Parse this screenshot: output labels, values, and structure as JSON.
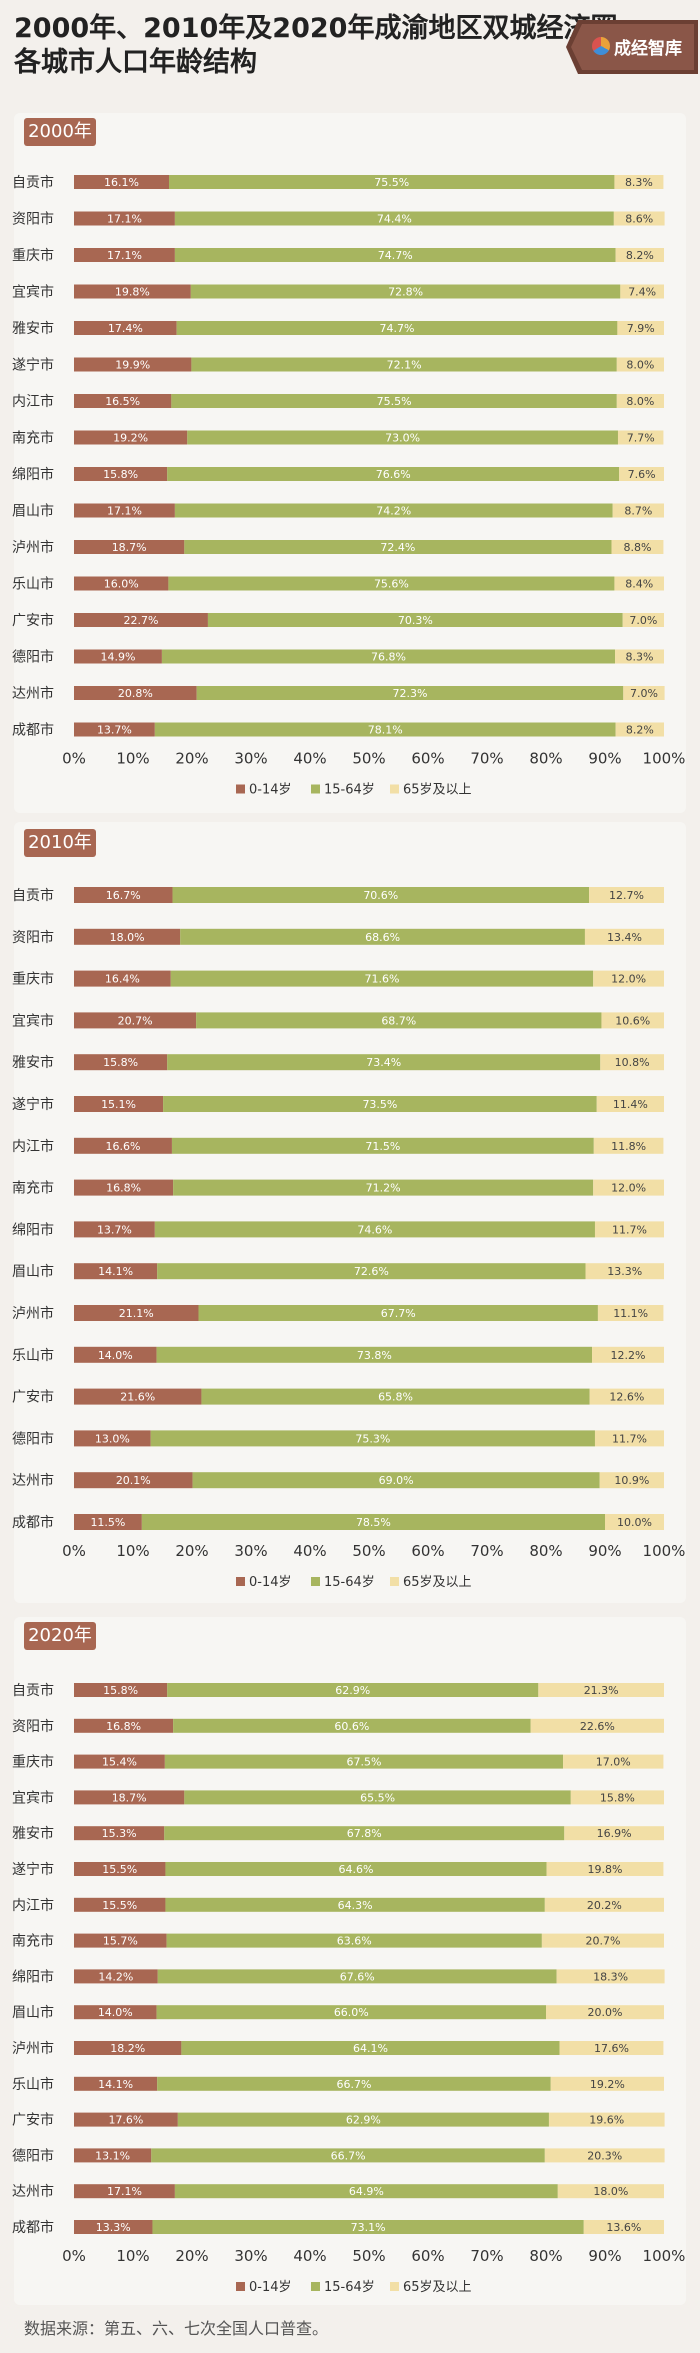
{
  "title_line1": "2000年、2010年及2020年成渝地区双城经济圈",
  "title_line2": "各城市人口年龄结构",
  "logo_text": "成经智库",
  "source": "数据来源：第五、六、七次全国人口普查。",
  "colors": {
    "age_0_14": "#a86752",
    "age_15_64": "#a7b55f",
    "age_65_plus": "#f2dfa6"
  },
  "chart_data": [
    {
      "type": "bar",
      "title": "2000年",
      "orientation": "horizontal-stacked-100",
      "categories": [
        "自贡市",
        "资阳市",
        "重庆市",
        "宜宾市",
        "雅安市",
        "遂宁市",
        "内江市",
        "南充市",
        "绵阳市",
        "眉山市",
        "泸州市",
        "乐山市",
        "广安市",
        "德阳市",
        "达州市",
        "成都市"
      ],
      "series": [
        {
          "name": "0-14岁",
          "values": [
            16.1,
            17.1,
            17.1,
            19.8,
            17.4,
            19.9,
            16.5,
            19.2,
            15.8,
            17.1,
            18.7,
            16.0,
            22.7,
            14.9,
            20.8,
            13.7
          ]
        },
        {
          "name": "15-64岁",
          "values": [
            75.5,
            74.4,
            74.7,
            72.8,
            74.7,
            72.1,
            75.5,
            73.0,
            76.6,
            74.2,
            72.4,
            75.6,
            70.3,
            76.8,
            72.3,
            78.1
          ]
        },
        {
          "name": "65岁及以上",
          "values": [
            8.3,
            8.6,
            8.2,
            7.4,
            7.9,
            8.0,
            8.0,
            7.7,
            7.6,
            8.7,
            8.8,
            8.4,
            7.0,
            8.3,
            7.0,
            8.2
          ]
        }
      ],
      "xticks": [
        "0%",
        "10%",
        "20%",
        "30%",
        "40%",
        "50%",
        "60%",
        "70%",
        "80%",
        "90%",
        "100%"
      ],
      "xlim": [
        0,
        100
      ],
      "legend_placement": "bottom"
    },
    {
      "type": "bar",
      "title": "2010年",
      "orientation": "horizontal-stacked-100",
      "categories": [
        "自贡市",
        "资阳市",
        "重庆市",
        "宜宾市",
        "雅安市",
        "遂宁市",
        "内江市",
        "南充市",
        "绵阳市",
        "眉山市",
        "泸州市",
        "乐山市",
        "广安市",
        "德阳市",
        "达州市",
        "成都市"
      ],
      "series": [
        {
          "name": "0-14岁",
          "values": [
            16.7,
            18.0,
            16.4,
            20.7,
            15.8,
            15.1,
            16.6,
            16.8,
            13.7,
            14.1,
            21.1,
            14.0,
            21.6,
            13.0,
            20.1,
            11.5
          ]
        },
        {
          "name": "15-64岁",
          "values": [
            70.6,
            68.6,
            71.6,
            68.7,
            73.4,
            73.5,
            71.5,
            71.2,
            74.6,
            72.6,
            67.7,
            73.8,
            65.8,
            75.3,
            69.0,
            78.5
          ]
        },
        {
          "name": "65岁及以上",
          "values": [
            12.7,
            13.4,
            12.0,
            10.6,
            10.8,
            11.4,
            11.8,
            12.0,
            11.7,
            13.3,
            11.1,
            12.2,
            12.6,
            11.7,
            10.9,
            10.0
          ]
        }
      ],
      "xticks": [
        "0%",
        "10%",
        "20%",
        "30%",
        "40%",
        "50%",
        "60%",
        "70%",
        "80%",
        "90%",
        "100%"
      ],
      "xlim": [
        0,
        100
      ],
      "legend_placement": "bottom"
    },
    {
      "type": "bar",
      "title": "2020年",
      "orientation": "horizontal-stacked-100",
      "categories": [
        "自贡市",
        "资阳市",
        "重庆市",
        "宜宾市",
        "雅安市",
        "遂宁市",
        "内江市",
        "南充市",
        "绵阳市",
        "眉山市",
        "泸州市",
        "乐山市",
        "广安市",
        "德阳市",
        "达州市",
        "成都市"
      ],
      "series": [
        {
          "name": "0-14岁",
          "values": [
            15.8,
            16.8,
            15.4,
            18.7,
            15.3,
            15.5,
            15.5,
            15.7,
            14.2,
            14.0,
            18.2,
            14.1,
            17.6,
            13.1,
            17.1,
            13.3
          ]
        },
        {
          "name": "15-64岁",
          "values": [
            62.9,
            60.6,
            67.5,
            65.5,
            67.8,
            64.6,
            64.3,
            63.6,
            67.6,
            66.0,
            64.1,
            66.7,
            62.9,
            66.7,
            64.9,
            73.1
          ]
        },
        {
          "name": "65岁及以上",
          "values": [
            21.3,
            22.6,
            17.0,
            15.8,
            16.9,
            19.8,
            20.2,
            20.7,
            18.3,
            20.0,
            17.6,
            19.2,
            19.6,
            20.3,
            18.0,
            13.6
          ]
        }
      ],
      "xticks": [
        "0%",
        "10%",
        "20%",
        "30%",
        "40%",
        "50%",
        "60%",
        "70%",
        "80%",
        "90%",
        "100%"
      ],
      "xlim": [
        0,
        100
      ],
      "legend_placement": "bottom"
    }
  ]
}
